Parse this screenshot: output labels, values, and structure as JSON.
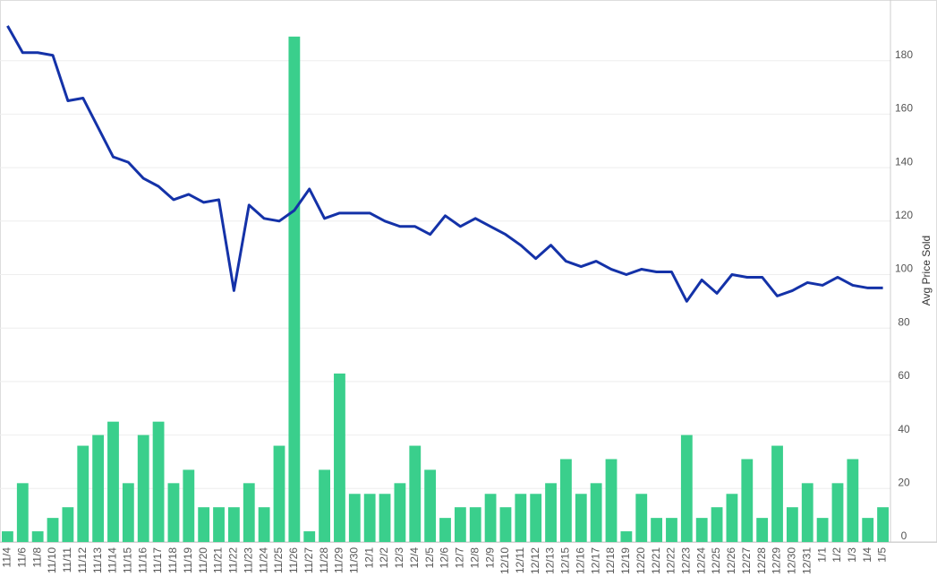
{
  "chart_data": {
    "type": "bar-line",
    "y2_label": "Avg Price Sold",
    "categories": [
      "11/4",
      "11/6",
      "11/8",
      "11/10",
      "11/11",
      "11/12",
      "11/13",
      "11/14",
      "11/15",
      "11/16",
      "11/17",
      "11/18",
      "11/19",
      "11/20",
      "11/21",
      "11/22",
      "11/23",
      "11/24",
      "11/25",
      "11/26",
      "11/27",
      "11/28",
      "11/29",
      "11/30",
      "12/1",
      "12/2",
      "12/3",
      "12/4",
      "12/5",
      "12/6",
      "12/7",
      "12/8",
      "12/9",
      "12/10",
      "12/11",
      "12/12",
      "12/13",
      "12/15",
      "12/16",
      "12/17",
      "12/18",
      "12/19",
      "12/20",
      "12/21",
      "12/22",
      "12/23",
      "12/24",
      "12/25",
      "12/26",
      "12/27",
      "12/28",
      "12/29",
      "12/30",
      "12/31",
      "1/1",
      "1/2",
      "1/3",
      "1/4",
      "1/5"
    ],
    "series": [
      {
        "kind": "bar",
        "color": "#3acf8c",
        "values": [
          4,
          22,
          4,
          9,
          13,
          36,
          40,
          45,
          22,
          40,
          45,
          22,
          27,
          13,
          13,
          13,
          22,
          13,
          36,
          189,
          4,
          27,
          63,
          18,
          18,
          18,
          22,
          36,
          27,
          9,
          13,
          13,
          18,
          13,
          18,
          18,
          22,
          31,
          18,
          22,
          31,
          4,
          18,
          9,
          9,
          40,
          9,
          13,
          18,
          31,
          9,
          36,
          13,
          22,
          9,
          22,
          31,
          9,
          13
        ]
      },
      {
        "kind": "line",
        "color": "#1432a8",
        "values": [
          193,
          183,
          183,
          182,
          165,
          166,
          155,
          144,
          142,
          136,
          133,
          128,
          130,
          127,
          128,
          94,
          126,
          121,
          120,
          124,
          132,
          121,
          123,
          123,
          123,
          120,
          118,
          118,
          115,
          122,
          118,
          121,
          118,
          115,
          111,
          106,
          111,
          105,
          103,
          105,
          102,
          100,
          102,
          101,
          101,
          90,
          98,
          93,
          100,
          99,
          99,
          92,
          94,
          97,
          96,
          99,
          96,
          95,
          95
        ]
      }
    ],
    "ylim": [
      0,
      200
    ],
    "yticks": [
      0,
      20,
      40,
      60,
      80,
      100,
      120,
      140,
      160,
      180
    ],
    "grid": true
  }
}
